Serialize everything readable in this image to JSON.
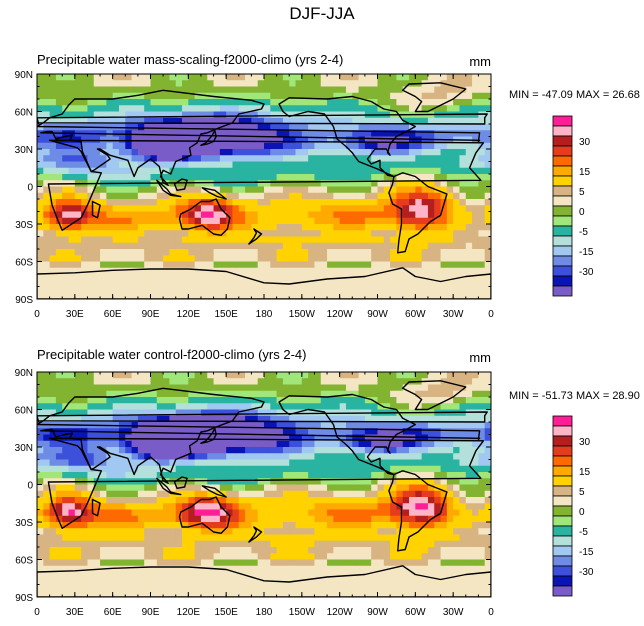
{
  "title": "DJF-JJA",
  "colors": {
    "levels": [
      "#7a5cc8",
      "#0a14b4",
      "#3c50dc",
      "#6e8ce6",
      "#a0c8f0",
      "#b4e0dc",
      "#28b4a0",
      "#a0e678",
      "#82b432",
      "#f5e6c3",
      "#d7b482",
      "#ffd200",
      "#ffaa00",
      "#ff6a00",
      "#e63c1e",
      "#b41e1e",
      "#ffb4c8",
      "#ff1e96"
    ],
    "land": "#000000"
  },
  "chart_data": [
    {
      "type": "heatmap",
      "title": "Precipitable water  mass-scaling-f2000-climo (yrs 2-4)",
      "units": "mm",
      "stats": "MIN = -47.09 MAX =  26.68",
      "x_ticks": [
        "0",
        "30E",
        "60E",
        "90E",
        "120E",
        "150E",
        "180",
        "150W",
        "120W",
        "90W",
        "60W",
        "30W",
        "0"
      ],
      "y_ticks": [
        "90N",
        "60N",
        "30N",
        "0",
        "30S",
        "60S",
        "90S"
      ],
      "colorbar_labels": [
        "30",
        "15",
        "5",
        "0",
        "-5",
        "-15",
        "-30"
      ]
    },
    {
      "type": "heatmap",
      "title": "Precipitable water       control-f2000-climo (yrs 2-4)",
      "units": "mm",
      "stats": "MIN = -51.73 MAX =  28.90",
      "x_ticks": [
        "0",
        "30E",
        "60E",
        "90E",
        "120E",
        "150E",
        "180",
        "150W",
        "120W",
        "90W",
        "60W",
        "30W",
        "0"
      ],
      "y_ticks": [
        "90N",
        "60N",
        "30N",
        "0",
        "30S",
        "60S",
        "90S"
      ],
      "colorbar_labels": [
        "30",
        "15",
        "5",
        "0",
        "-5",
        "-15",
        "-30"
      ]
    }
  ]
}
